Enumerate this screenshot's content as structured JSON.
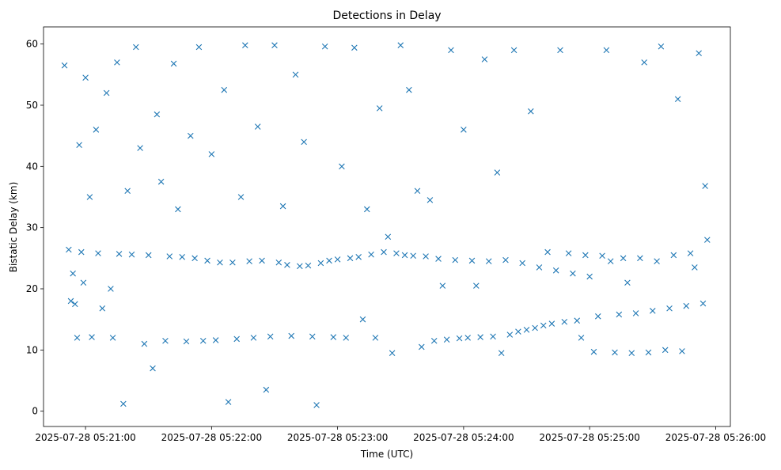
{
  "chart_data": {
    "type": "scatter",
    "title": "Detections in Delay",
    "xlabel": "Time (UTC)",
    "ylabel": "Bistatic Delay (km)",
    "x_tick_labels": [
      "2025-07-28 05:21:00",
      "2025-07-28 05:22:00",
      "2025-07-28 05:23:00",
      "2025-07-28 05:24:00",
      "2025-07-28 05:25:00",
      "2025-07-28 05:26:00"
    ],
    "y_tick_labels": [
      "0",
      "10",
      "20",
      "30",
      "40",
      "50",
      "60"
    ],
    "y_ticks": [
      0,
      10,
      20,
      30,
      40,
      50,
      60
    ],
    "xlim": [
      "2025-07-28 05:20:40",
      "2025-07-28 05:26:07"
    ],
    "ylim": [
      -2.5,
      62.8
    ],
    "marker": "x",
    "color": "#1f77b4",
    "grid": false,
    "series": [
      {
        "points": [
          [
            "2025-07-28 05:20:50",
            56.5
          ],
          [
            "2025-07-28 05:20:52",
            26.4
          ],
          [
            "2025-07-28 05:20:53",
            18.0
          ],
          [
            "2025-07-28 05:20:54",
            22.5
          ],
          [
            "2025-07-28 05:20:55",
            17.5
          ],
          [
            "2025-07-28 05:20:56",
            12.0
          ],
          [
            "2025-07-28 05:20:57",
            43.5
          ],
          [
            "2025-07-28 05:20:58",
            26.0
          ],
          [
            "2025-07-28 05:20:59",
            21.0
          ],
          [
            "2025-07-28 05:21:00",
            54.5
          ],
          [
            "2025-07-28 05:21:02",
            35.0
          ],
          [
            "2025-07-28 05:21:03",
            12.1
          ],
          [
            "2025-07-28 05:21:05",
            46.0
          ],
          [
            "2025-07-28 05:21:06",
            25.8
          ],
          [
            "2025-07-28 05:21:08",
            16.8
          ],
          [
            "2025-07-28 05:21:10",
            52.0
          ],
          [
            "2025-07-28 05:21:12",
            20.0
          ],
          [
            "2025-07-28 05:21:13",
            12.0
          ],
          [
            "2025-07-28 05:21:15",
            57.0
          ],
          [
            "2025-07-28 05:21:16",
            25.7
          ],
          [
            "2025-07-28 05:21:18",
            1.2
          ],
          [
            "2025-07-28 05:21:20",
            36.0
          ],
          [
            "2025-07-28 05:21:22",
            25.6
          ],
          [
            "2025-07-28 05:21:24",
            59.5
          ],
          [
            "2025-07-28 05:21:26",
            43.0
          ],
          [
            "2025-07-28 05:21:28",
            11.0
          ],
          [
            "2025-07-28 05:21:30",
            25.5
          ],
          [
            "2025-07-28 05:21:32",
            7.0
          ],
          [
            "2025-07-28 05:21:34",
            48.5
          ],
          [
            "2025-07-28 05:21:36",
            37.5
          ],
          [
            "2025-07-28 05:21:38",
            11.5
          ],
          [
            "2025-07-28 05:21:40",
            25.3
          ],
          [
            "2025-07-28 05:21:42",
            56.8
          ],
          [
            "2025-07-28 05:21:44",
            33.0
          ],
          [
            "2025-07-28 05:21:46",
            25.2
          ],
          [
            "2025-07-28 05:21:48",
            11.4
          ],
          [
            "2025-07-28 05:21:50",
            45.0
          ],
          [
            "2025-07-28 05:21:52",
            25.0
          ],
          [
            "2025-07-28 05:21:54",
            59.5
          ],
          [
            "2025-07-28 05:21:56",
            11.5
          ],
          [
            "2025-07-28 05:21:58",
            24.6
          ],
          [
            "2025-07-28 05:22:00",
            42.0
          ],
          [
            "2025-07-28 05:22:02",
            11.6
          ],
          [
            "2025-07-28 05:22:04",
            24.3
          ],
          [
            "2025-07-28 05:22:06",
            52.5
          ],
          [
            "2025-07-28 05:22:08",
            1.5
          ],
          [
            "2025-07-28 05:22:10",
            24.3
          ],
          [
            "2025-07-28 05:22:12",
            11.8
          ],
          [
            "2025-07-28 05:22:14",
            35.0
          ],
          [
            "2025-07-28 05:22:16",
            59.8
          ],
          [
            "2025-07-28 05:22:18",
            24.5
          ],
          [
            "2025-07-28 05:22:20",
            12.0
          ],
          [
            "2025-07-28 05:22:22",
            46.5
          ],
          [
            "2025-07-28 05:22:24",
            24.6
          ],
          [
            "2025-07-28 05:22:26",
            3.5
          ],
          [
            "2025-07-28 05:22:28",
            12.2
          ],
          [
            "2025-07-28 05:22:30",
            59.8
          ],
          [
            "2025-07-28 05:22:32",
            24.3
          ],
          [
            "2025-07-28 05:22:34",
            33.5
          ],
          [
            "2025-07-28 05:22:36",
            23.9
          ],
          [
            "2025-07-28 05:22:38",
            12.3
          ],
          [
            "2025-07-28 05:22:40",
            55.0
          ],
          [
            "2025-07-28 05:22:42",
            23.7
          ],
          [
            "2025-07-28 05:22:44",
            44.0
          ],
          [
            "2025-07-28 05:22:46",
            23.8
          ],
          [
            "2025-07-28 05:22:48",
            12.2
          ],
          [
            "2025-07-28 05:22:50",
            1.0
          ],
          [
            "2025-07-28 05:22:52",
            24.2
          ],
          [
            "2025-07-28 05:22:54",
            59.6
          ],
          [
            "2025-07-28 05:22:56",
            24.6
          ],
          [
            "2025-07-28 05:22:58",
            12.1
          ],
          [
            "2025-07-28 05:23:00",
            24.8
          ],
          [
            "2025-07-28 05:23:02",
            40.0
          ],
          [
            "2025-07-28 05:23:04",
            12.0
          ],
          [
            "2025-07-28 05:23:06",
            25.0
          ],
          [
            "2025-07-28 05:23:08",
            59.4
          ],
          [
            "2025-07-28 05:23:10",
            25.2
          ],
          [
            "2025-07-28 05:23:12",
            15.0
          ],
          [
            "2025-07-28 05:23:14",
            33.0
          ],
          [
            "2025-07-28 05:23:16",
            25.6
          ],
          [
            "2025-07-28 05:23:18",
            12.0
          ],
          [
            "2025-07-28 05:23:20",
            49.5
          ],
          [
            "2025-07-28 05:23:22",
            26.0
          ],
          [
            "2025-07-28 05:23:24",
            28.5
          ],
          [
            "2025-07-28 05:23:26",
            9.5
          ],
          [
            "2025-07-28 05:23:28",
            25.8
          ],
          [
            "2025-07-28 05:23:30",
            59.8
          ],
          [
            "2025-07-28 05:23:32",
            25.5
          ],
          [
            "2025-07-28 05:23:34",
            52.5
          ],
          [
            "2025-07-28 05:23:36",
            25.4
          ],
          [
            "2025-07-28 05:23:38",
            36.0
          ],
          [
            "2025-07-28 05:23:40",
            10.5
          ],
          [
            "2025-07-28 05:23:42",
            25.3
          ],
          [
            "2025-07-28 05:23:44",
            34.5
          ],
          [
            "2025-07-28 05:23:46",
            11.5
          ],
          [
            "2025-07-28 05:23:48",
            24.9
          ],
          [
            "2025-07-28 05:23:50",
            20.5
          ],
          [
            "2025-07-28 05:23:52",
            11.7
          ],
          [
            "2025-07-28 05:23:54",
            59.0
          ],
          [
            "2025-07-28 05:23:56",
            24.7
          ],
          [
            "2025-07-28 05:23:58",
            11.9
          ],
          [
            "2025-07-28 05:24:00",
            46.0
          ],
          [
            "2025-07-28 05:24:02",
            12.0
          ],
          [
            "2025-07-28 05:24:04",
            24.6
          ],
          [
            "2025-07-28 05:24:06",
            20.5
          ],
          [
            "2025-07-28 05:24:08",
            12.1
          ],
          [
            "2025-07-28 05:24:10",
            57.5
          ],
          [
            "2025-07-28 05:24:12",
            24.5
          ],
          [
            "2025-07-28 05:24:14",
            12.2
          ],
          [
            "2025-07-28 05:24:16",
            39.0
          ],
          [
            "2025-07-28 05:24:18",
            9.5
          ],
          [
            "2025-07-28 05:24:20",
            24.7
          ],
          [
            "2025-07-28 05:24:22",
            12.5
          ],
          [
            "2025-07-28 05:24:24",
            59.0
          ],
          [
            "2025-07-28 05:24:26",
            13.0
          ],
          [
            "2025-07-28 05:24:28",
            24.2
          ],
          [
            "2025-07-28 05:24:30",
            13.3
          ],
          [
            "2025-07-28 05:24:32",
            49.0
          ],
          [
            "2025-07-28 05:24:34",
            13.6
          ],
          [
            "2025-07-28 05:24:36",
            23.5
          ],
          [
            "2025-07-28 05:24:38",
            14.0
          ],
          [
            "2025-07-28 05:24:40",
            26.0
          ],
          [
            "2025-07-28 05:24:42",
            14.3
          ],
          [
            "2025-07-28 05:24:44",
            23.0
          ],
          [
            "2025-07-28 05:24:46",
            59.0
          ],
          [
            "2025-07-28 05:24:48",
            14.6
          ],
          [
            "2025-07-28 05:24:50",
            25.8
          ],
          [
            "2025-07-28 05:24:52",
            22.5
          ],
          [
            "2025-07-28 05:24:54",
            14.8
          ],
          [
            "2025-07-28 05:24:56",
            12.0
          ],
          [
            "2025-07-28 05:24:58",
            25.5
          ],
          [
            "2025-07-28 05:25:00",
            22.0
          ],
          [
            "2025-07-28 05:25:02",
            9.7
          ],
          [
            "2025-07-28 05:25:04",
            15.5
          ],
          [
            "2025-07-28 05:25:06",
            25.4
          ],
          [
            "2025-07-28 05:25:08",
            59.0
          ],
          [
            "2025-07-28 05:25:10",
            24.5
          ],
          [
            "2025-07-28 05:25:12",
            9.6
          ],
          [
            "2025-07-28 05:25:14",
            15.8
          ],
          [
            "2025-07-28 05:25:16",
            25.0
          ],
          [
            "2025-07-28 05:25:18",
            21.0
          ],
          [
            "2025-07-28 05:25:20",
            9.5
          ],
          [
            "2025-07-28 05:25:22",
            16.0
          ],
          [
            "2025-07-28 05:25:24",
            25.0
          ],
          [
            "2025-07-28 05:25:26",
            57.0
          ],
          [
            "2025-07-28 05:25:28",
            9.6
          ],
          [
            "2025-07-28 05:25:30",
            16.4
          ],
          [
            "2025-07-28 05:25:32",
            24.5
          ],
          [
            "2025-07-28 05:25:34",
            59.6
          ],
          [
            "2025-07-28 05:25:36",
            10.0
          ],
          [
            "2025-07-28 05:25:38",
            16.8
          ],
          [
            "2025-07-28 05:25:40",
            25.5
          ],
          [
            "2025-07-28 05:25:42",
            51.0
          ],
          [
            "2025-07-28 05:25:44",
            9.8
          ],
          [
            "2025-07-28 05:25:46",
            17.2
          ],
          [
            "2025-07-28 05:25:48",
            25.8
          ],
          [
            "2025-07-28 05:25:50",
            23.5
          ],
          [
            "2025-07-28 05:25:52",
            58.5
          ],
          [
            "2025-07-28 05:25:54",
            17.6
          ],
          [
            "2025-07-28 05:25:55",
            36.8
          ],
          [
            "2025-07-28 05:25:56",
            28.0
          ]
        ]
      }
    ]
  }
}
